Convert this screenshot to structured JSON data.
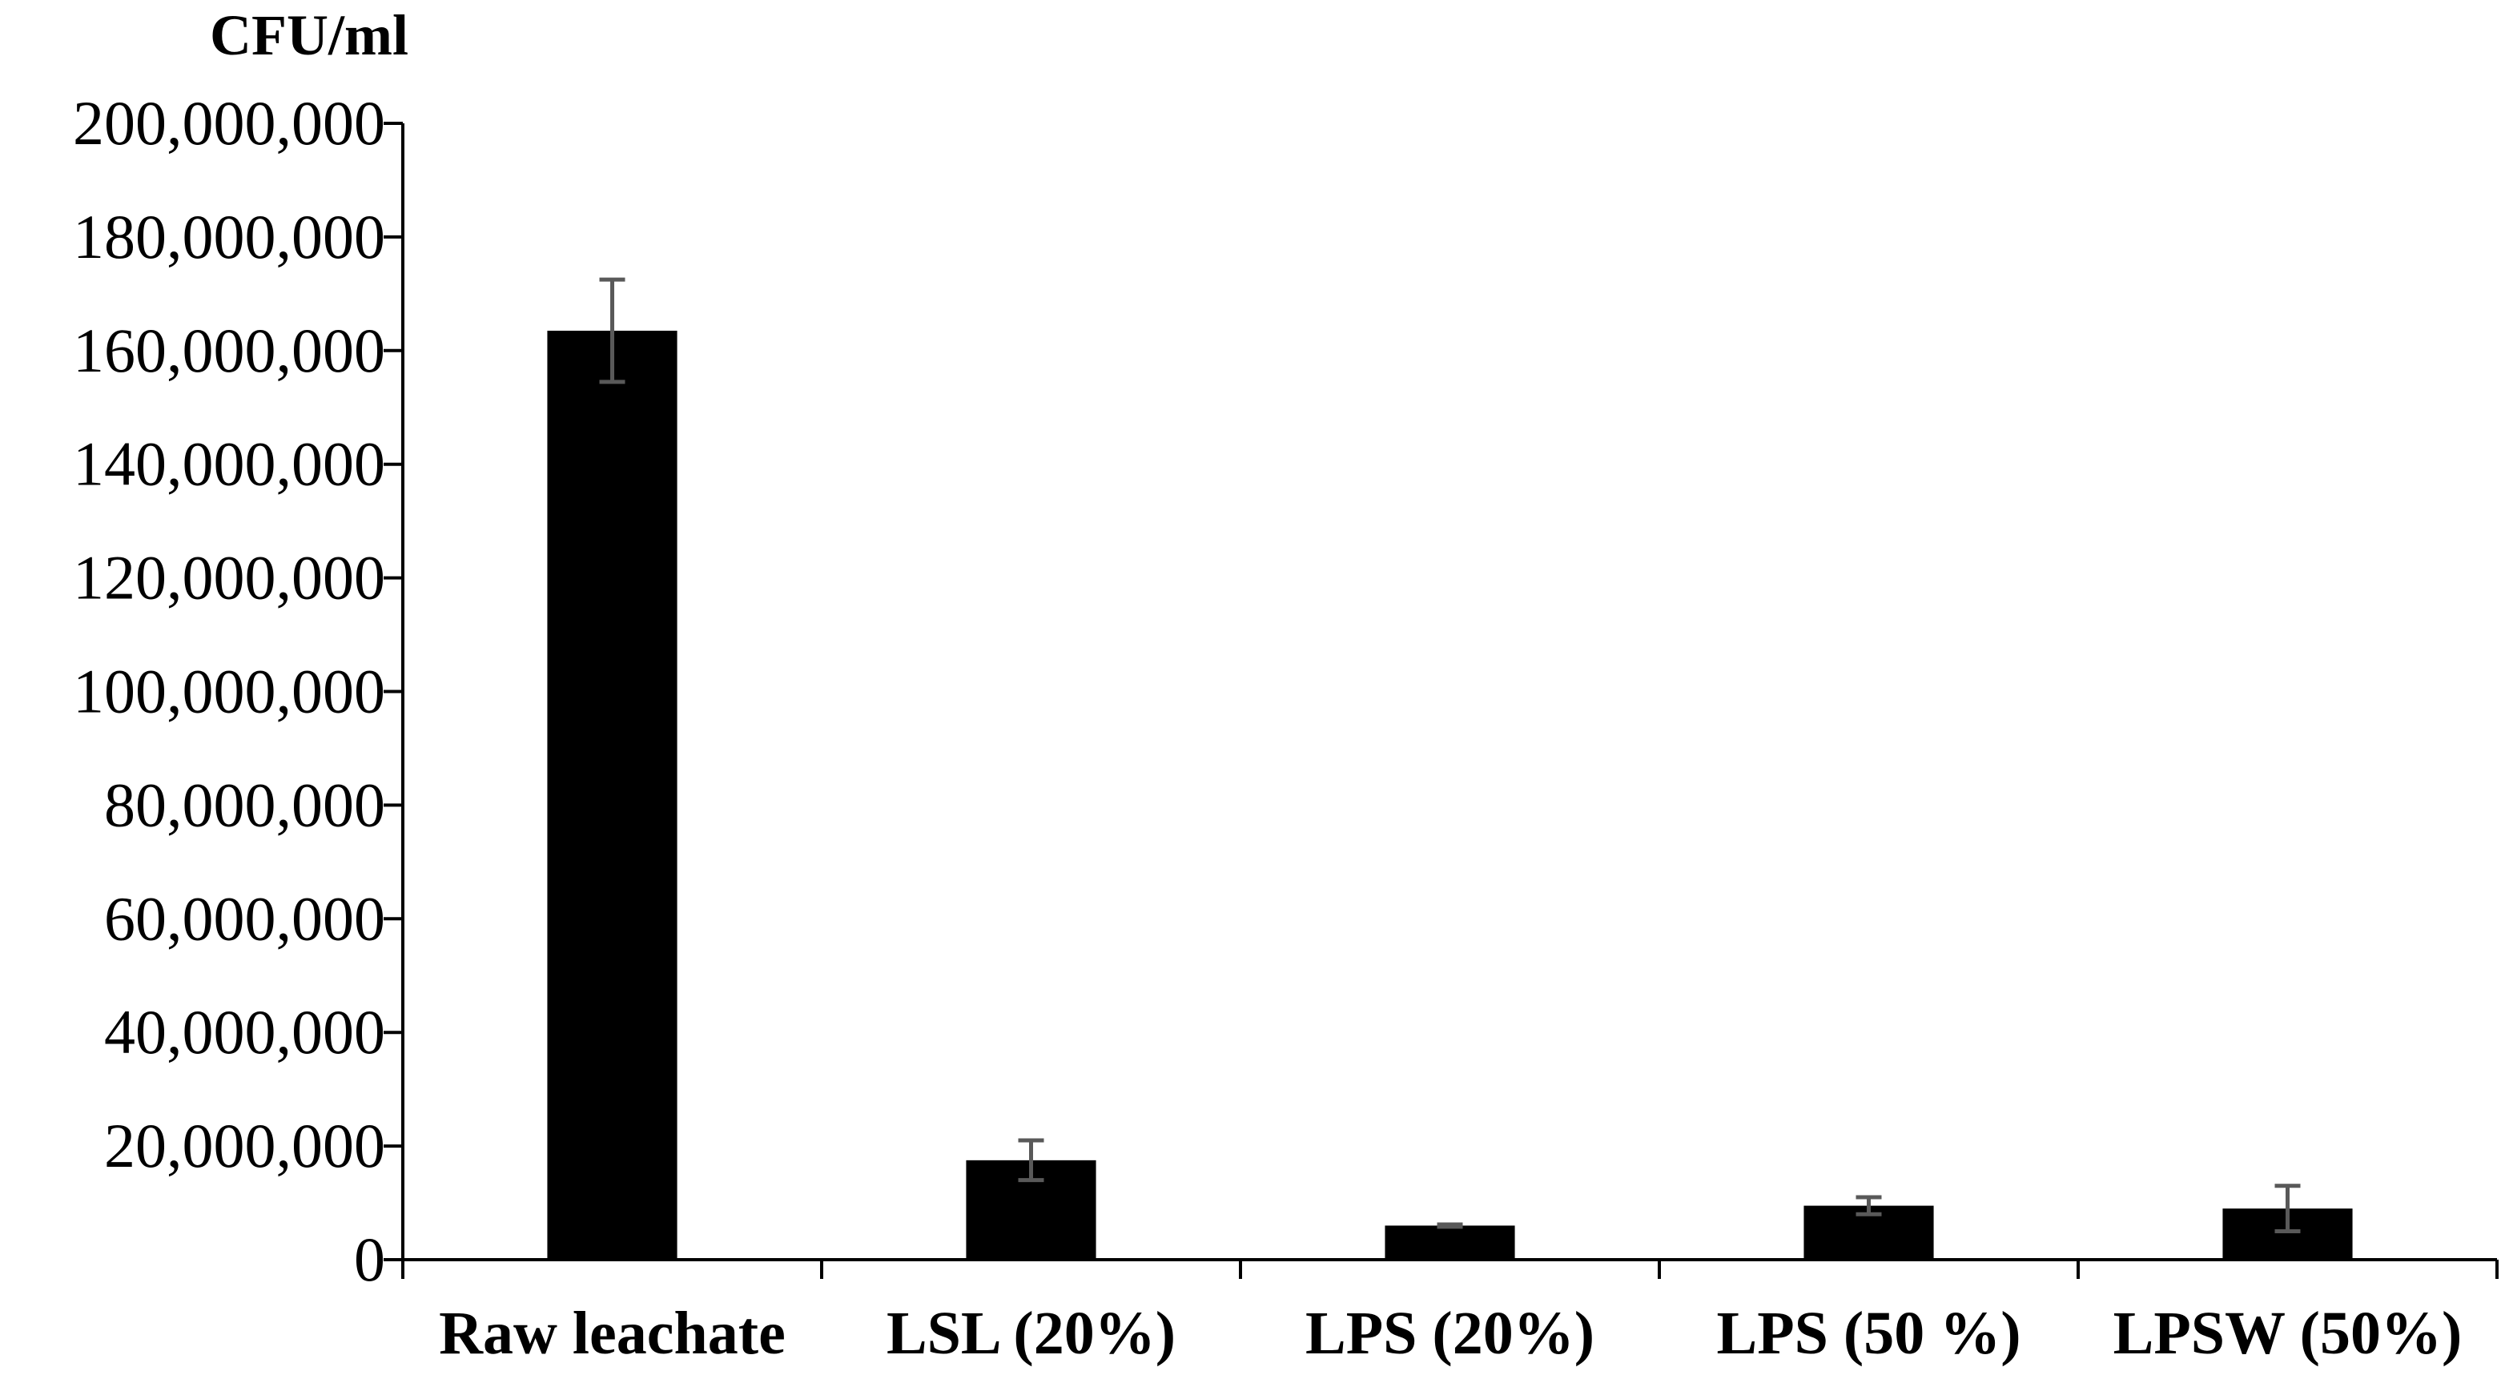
{
  "chart_data": {
    "type": "bar",
    "title": "",
    "xlabel": "",
    "ylabel": "CFU/ml",
    "ylim": [
      0,
      200000000
    ],
    "yticks": [
      0,
      20000000,
      40000000,
      60000000,
      80000000,
      100000000,
      120000000,
      140000000,
      160000000,
      180000000,
      200000000
    ],
    "ytick_labels": [
      "0",
      "20,000,000",
      "40,000,000",
      "60,000,000",
      "80,000,000",
      "100,000,000",
      "120,000,000",
      "140,000,000",
      "160,000,000",
      "180,000,000",
      "200,000,000"
    ],
    "categories": [
      "Raw leachate",
      "LSL (20%)",
      "LPS (20%)",
      "LPS (50 %)",
      "LPSW (50%)"
    ],
    "values": [
      163500000,
      17500000,
      6000000,
      9500000,
      9000000
    ],
    "errors": [
      9000000,
      3500000,
      200000,
      1500000,
      4000000
    ],
    "grid": false,
    "legend": "none",
    "bar_color": "#000000",
    "error_bar_color": "#595959",
    "axis_color": "#000000"
  }
}
